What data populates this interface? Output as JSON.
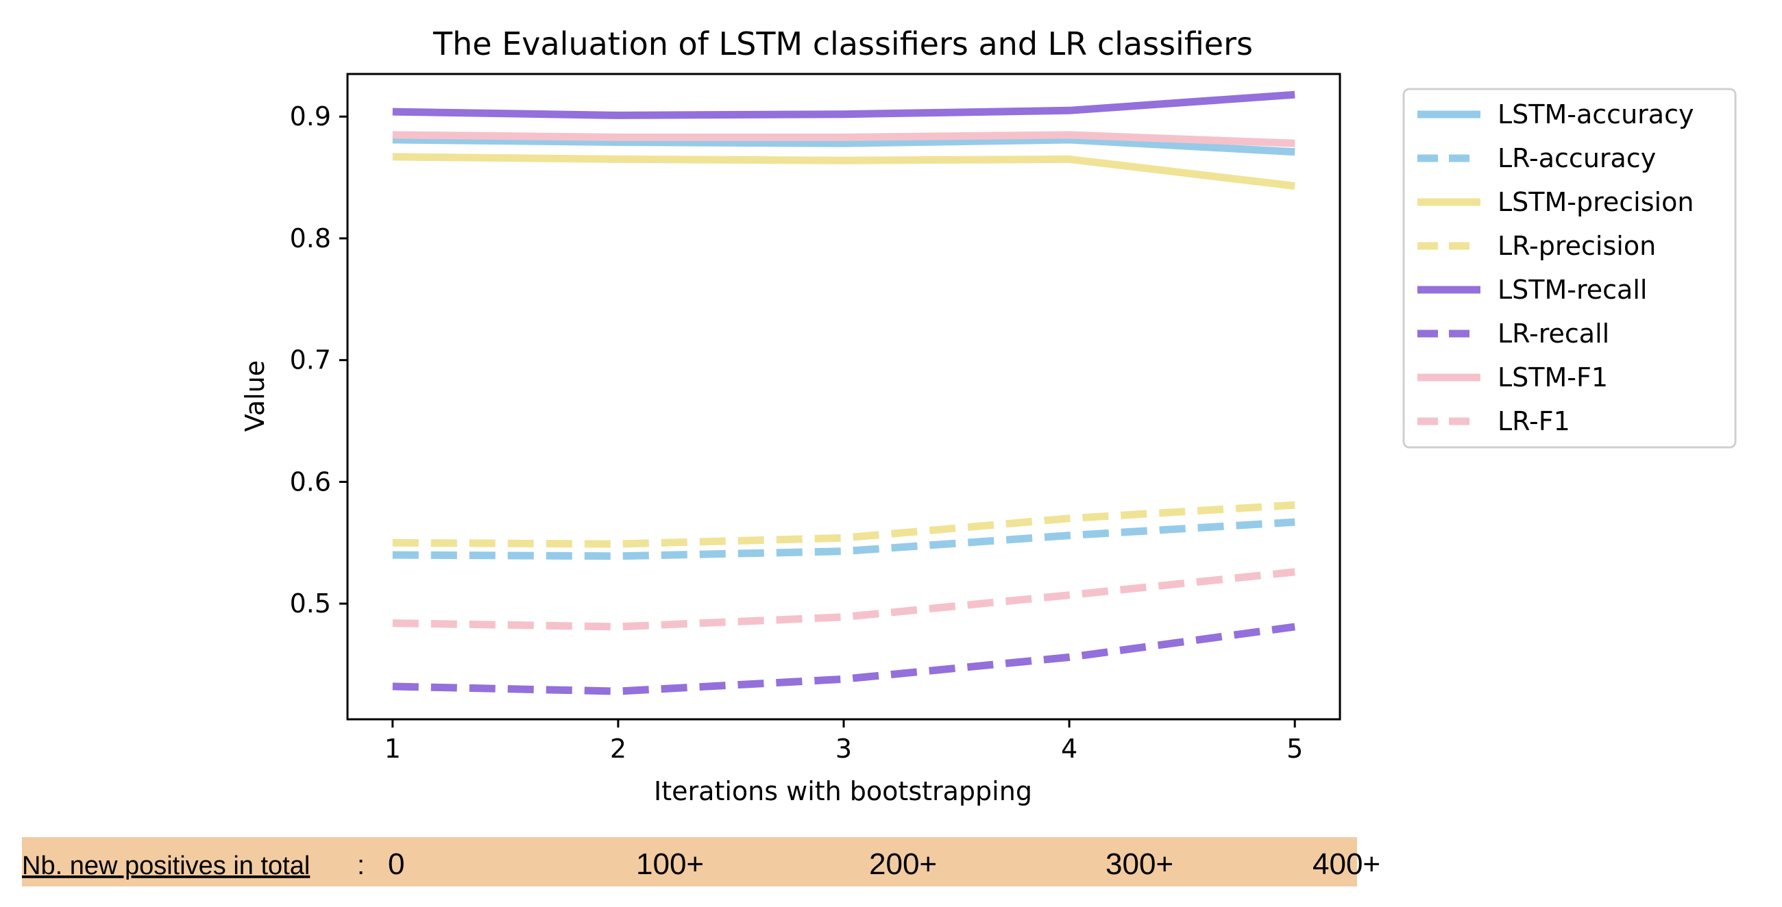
{
  "chart_data": {
    "type": "line",
    "title": "The Evaluation of LSTM classifiers and LR classifiers",
    "xlabel": "Iterations with bootstrapping",
    "ylabel": "Value",
    "x": [
      1,
      2,
      3,
      4,
      5
    ],
    "xlim": [
      0.8,
      5.2
    ],
    "ylim": [
      0.405,
      0.935
    ],
    "xticks": [
      "1",
      "2",
      "3",
      "4",
      "5"
    ],
    "yticks": [
      0.5,
      0.6,
      0.7,
      0.8,
      0.9
    ],
    "ytick_labels": [
      "0.5",
      "0.6",
      "0.7",
      "0.8",
      "0.9"
    ],
    "grid": false,
    "legend_position": "outside-right",
    "series": [
      {
        "name": "LSTM-accuracy",
        "color": "#95cbe8",
        "dash": "solid",
        "values": [
          0.881,
          0.879,
          0.878,
          0.881,
          0.871
        ]
      },
      {
        "name": "LR-accuracy",
        "color": "#95cbe8",
        "dash": "dashed",
        "values": [
          0.54,
          0.539,
          0.543,
          0.556,
          0.567
        ]
      },
      {
        "name": "LSTM-precision",
        "color": "#f0e396",
        "dash": "solid",
        "values": [
          0.867,
          0.865,
          0.864,
          0.865,
          0.843
        ]
      },
      {
        "name": "LR-precision",
        "color": "#f0e396",
        "dash": "dashed",
        "values": [
          0.55,
          0.549,
          0.554,
          0.57,
          0.581
        ]
      },
      {
        "name": "LSTM-recall",
        "color": "#9370db",
        "dash": "solid",
        "values": [
          0.904,
          0.901,
          0.902,
          0.905,
          0.918
        ]
      },
      {
        "name": "LR-recall",
        "color": "#9370db",
        "dash": "dashed",
        "values": [
          0.432,
          0.428,
          0.438,
          0.456,
          0.481
        ]
      },
      {
        "name": "LSTM-F1",
        "color": "#f5c2cb",
        "dash": "solid",
        "values": [
          0.885,
          0.883,
          0.883,
          0.885,
          0.878
        ]
      },
      {
        "name": "LR-F1",
        "color": "#f5c2cb",
        "dash": "dashed",
        "values": [
          0.484,
          0.481,
          0.489,
          0.507,
          0.526
        ]
      }
    ],
    "annotation": {
      "label": "Nb. new positives in total",
      "separator": ":",
      "values": [
        "0",
        "100+",
        "200+",
        "300+",
        "400+"
      ],
      "background_color": "#f2cba0"
    }
  }
}
